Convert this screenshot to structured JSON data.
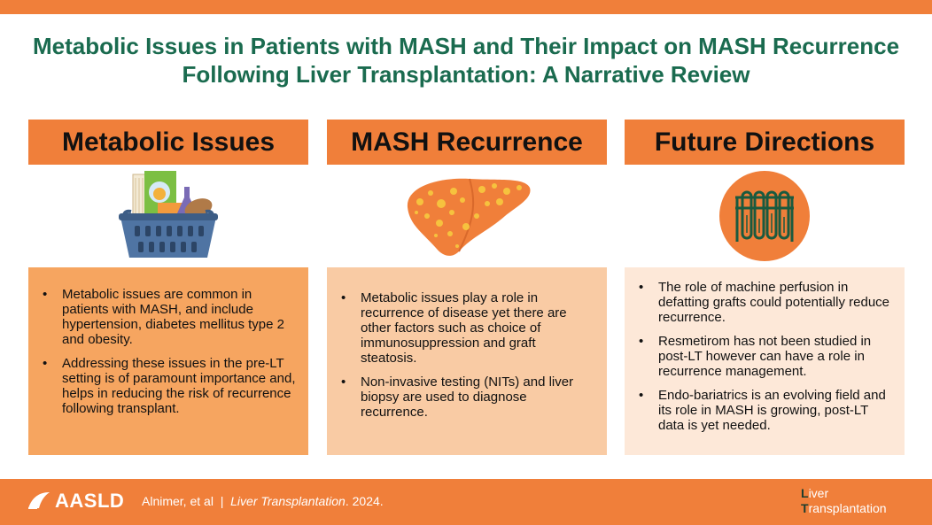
{
  "title_line1": "Metabolic Issues in Patients with MASH and Their Impact on MASH Recurrence",
  "title_line2": "Following Liver Transplantation: A Narrative Review",
  "columns": [
    {
      "header": "Metabolic Issues",
      "icon": "grocery-basket-icon",
      "bullets": [
        "Metabolic issues are common in patients with MASH, and include hypertension, diabetes mellitus type 2 and obesity.",
        "Addressing these issues in the pre-LT setting is of paramount importance and, helps in reducing the risk of recurrence following transplant."
      ]
    },
    {
      "header": "MASH Recurrence",
      "icon": "fatty-liver-icon",
      "bullets": [
        "Metabolic issues play a role in recurrence of disease yet there are other factors such as choice of immunosuppression and graft steatosis.",
        "Non-invasive testing (NITs) and liver biopsy are used to diagnose recurrence."
      ]
    },
    {
      "header": "Future Directions",
      "icon": "test-tubes-icon",
      "bullets": [
        "The role of machine perfusion in defatting grafts could potentially reduce recurrence.",
        "Resmetirom has not been studied in post-LT however can have a role in recurrence management.",
        "Endo-bariatrics is an evolving field and its role in MASH is growing, post-LT data is yet needed."
      ]
    }
  ],
  "footer": {
    "logo_text": "AASLD",
    "authors": "Alnimer, et al",
    "separator": "|",
    "journal": "Liver Transplantation",
    "year": ". 2024.",
    "lt_logo_line1_first": "L",
    "lt_logo_line1_rest": "iver",
    "lt_logo_line2_first": "T",
    "lt_logo_line2_rest": "ransplantation"
  },
  "colors": {
    "accent": "#f07f3a",
    "title_green": "#1a6b4f",
    "panel1": "#f6a560",
    "panel2": "#f9cba4",
    "panel3": "#fde8d8"
  }
}
